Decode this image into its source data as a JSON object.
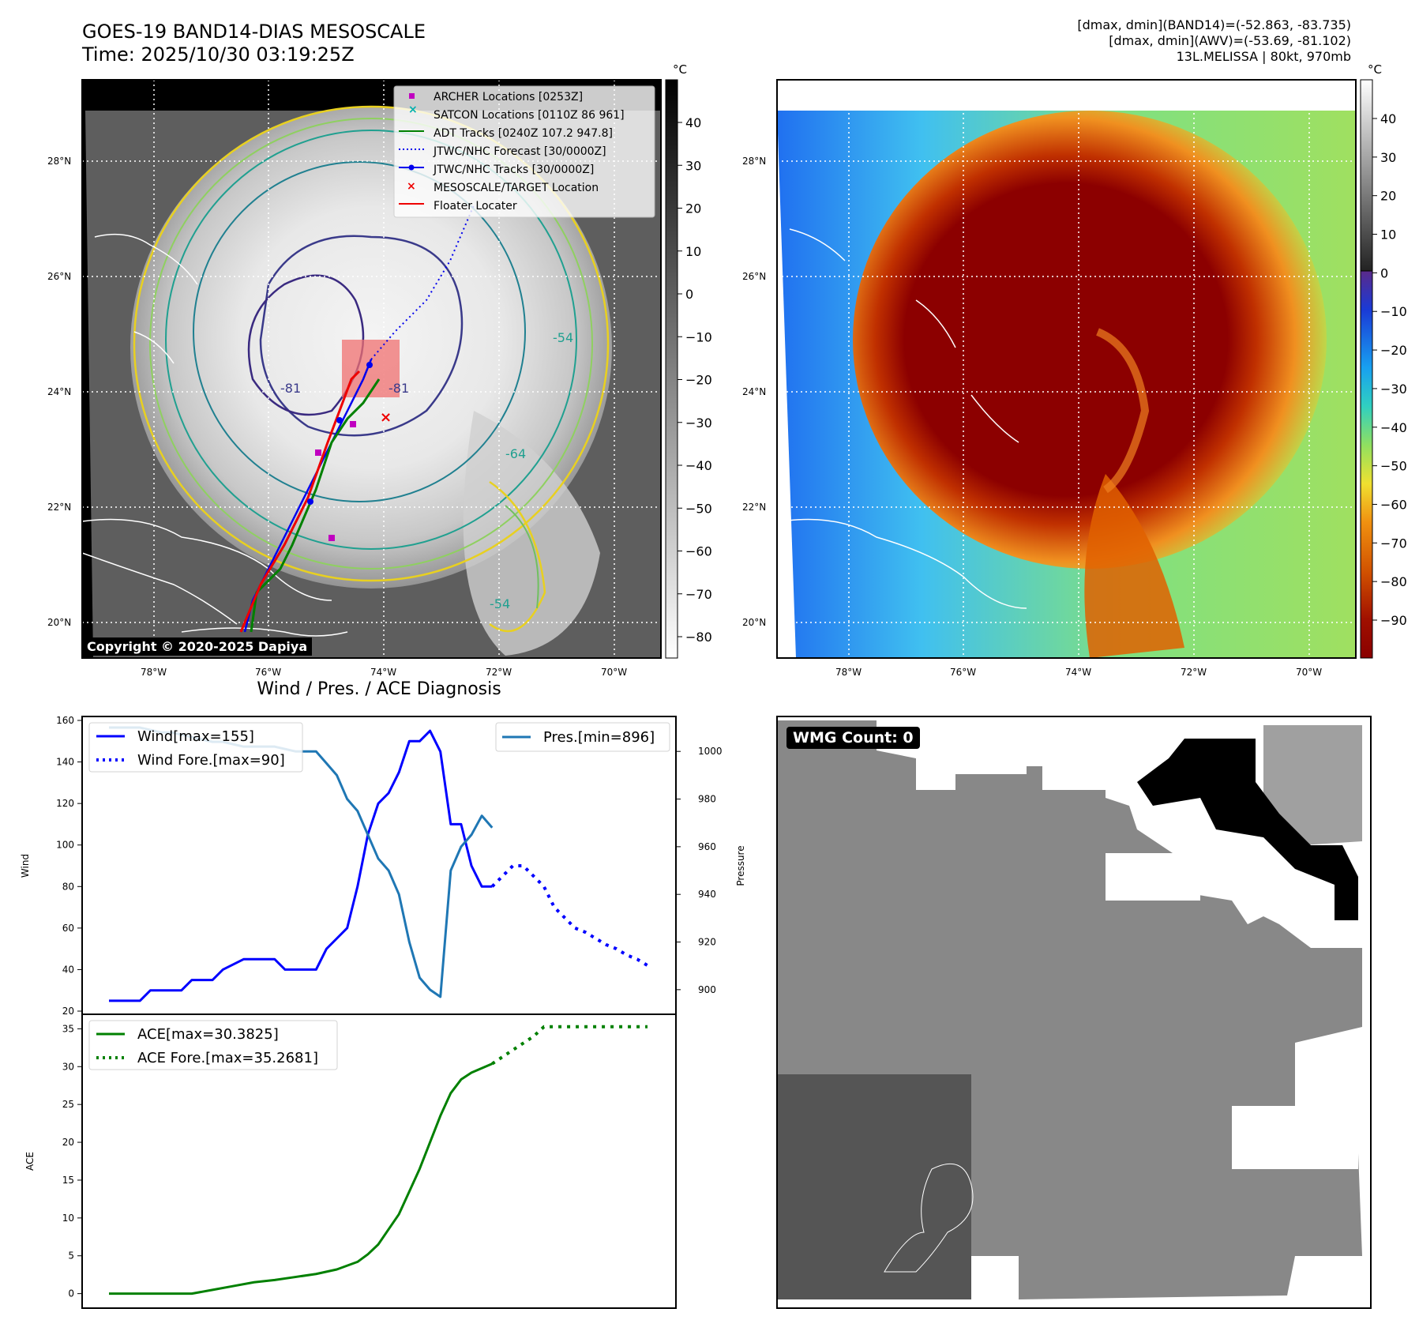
{
  "header": {
    "title_line1": "GOES-19 BAND14-DIAS MESOSCALE",
    "title_line2": "Time: 2025/10/30 03:19:25Z",
    "right_line1": "[dmax, dmin](BAND14)=(-52.863, -83.735)",
    "right_line2": "[dmax, dmin](AWV)=(-53.69, -81.102)",
    "right_line3": "13L.MELISSA | 80kt, 970mb"
  },
  "map": {
    "lat_labels": [
      "28°N",
      "26°N",
      "24°N",
      "22°N",
      "20°N"
    ],
    "lon_labels": [
      "78°W",
      "76°W",
      "74°W",
      "72°W",
      "70°W"
    ],
    "copyright": "Copyright © 2020-2025 Dapiya",
    "contour_labels": [
      "-81",
      "-54",
      "-64",
      "-81",
      "-54"
    ]
  },
  "colorbar_left": {
    "unit": "°C",
    "ticks": [
      "40",
      "30",
      "20",
      "10",
      "0",
      "−10",
      "−20",
      "−30",
      "−40",
      "−50",
      "−60",
      "−70",
      "−80"
    ]
  },
  "colorbar_right": {
    "unit": "°C",
    "ticks": [
      "40",
      "30",
      "20",
      "10",
      "0",
      "−10",
      "−20",
      "−30",
      "−40",
      "−50",
      "−60",
      "−70",
      "−80",
      "−90"
    ]
  },
  "legend": {
    "items": [
      {
        "label": "ARCHER Locations [0253Z]",
        "color": "#c000c0",
        "marker": "square-icon"
      },
      {
        "label": "SATCON Locations [0110Z 86 961]",
        "color": "#00b0b0",
        "marker": "x-icon"
      },
      {
        "label": "ADT Tracks [0240Z 107.2 947.8]",
        "color": "#008000",
        "marker": "line-icon"
      },
      {
        "label": "JTWC/NHC Forecast [30/0000Z]",
        "color": "#0000ee",
        "marker": "dotted-line-icon"
      },
      {
        "label": "JTWC/NHC Tracks [30/0000Z]",
        "color": "#0000ee",
        "marker": "line-dot-icon"
      },
      {
        "label": "MESOSCALE/TARGET Location",
        "color": "#ee0000",
        "marker": "x-icon"
      },
      {
        "label": "Floater Locater",
        "color": "#ee0000",
        "marker": "line-icon"
      }
    ]
  },
  "diagnosis": {
    "title": "Wind / Pres. / ACE Diagnosis",
    "wind_ylabel": "Wind",
    "pres_ylabel": "Pressure",
    "ace_ylabel": "ACE",
    "legend_wind": "Wind[max=155]",
    "legend_wind_fore": "Wind Fore.[max=90]",
    "legend_pres": "Pres.[min=896]",
    "legend_ace": "ACE[max=30.3825]",
    "legend_ace_fore": "ACE Fore.[max=35.2681]"
  },
  "wmg": {
    "badge": "WMG Count: 0"
  },
  "chart_data": [
    {
      "type": "line",
      "name": "wind",
      "ylim": [
        20,
        160
      ],
      "yticks": [
        20,
        40,
        60,
        80,
        100,
        120,
        140,
        160
      ],
      "series": [
        {
          "name": "Wind[max=155]",
          "color": "#0000ff",
          "style": "solid",
          "x": [
            0,
            3,
            4,
            7,
            8,
            10,
            11,
            13,
            14,
            16,
            17,
            19,
            20,
            21,
            22,
            23,
            24,
            25,
            26,
            27,
            28,
            29,
            30,
            31,
            32,
            33,
            34,
            35,
            35.5,
            36,
            36.5,
            37
          ],
          "values": [
            25,
            25,
            30,
            30,
            35,
            35,
            40,
            45,
            45,
            45,
            40,
            40,
            40,
            50,
            55,
            60,
            80,
            105,
            120,
            125,
            135,
            150,
            150,
            155,
            145,
            110,
            110,
            90,
            85,
            80,
            80,
            80
          ]
        },
        {
          "name": "Wind Fore.[max=90]",
          "color": "#0000ff",
          "style": "dotted",
          "x": [
            37,
            38,
            39,
            40,
            41,
            42,
            43,
            44,
            45,
            46,
            47,
            48,
            49,
            50,
            51,
            52
          ],
          "values": [
            80,
            85,
            90,
            90,
            85,
            80,
            70,
            65,
            60,
            58,
            55,
            52,
            50,
            47,
            45,
            42
          ]
        }
      ]
    },
    {
      "type": "line",
      "name": "pressure",
      "ylim": [
        891,
        1013
      ],
      "yticks": [
        900,
        920,
        940,
        960,
        980,
        1000
      ],
      "series": [
        {
          "name": "Pres.[min=896]",
          "color": "#1f77b4",
          "style": "solid",
          "x": [
            0,
            2,
            3,
            4,
            5,
            6,
            7,
            8,
            9,
            10,
            11,
            12,
            13,
            14,
            15,
            16,
            17,
            18,
            19,
            20,
            21,
            22,
            23,
            24,
            25,
            26,
            27,
            28,
            29,
            30,
            31,
            32,
            33,
            34,
            35,
            36,
            37
          ],
          "values": [
            1010,
            1010,
            1010,
            1009,
            1008,
            1008,
            1007,
            1006,
            1005,
            1004,
            1004,
            1003,
            1002,
            1002,
            1002,
            1002,
            1001,
            1000,
            1000,
            1000,
            995,
            990,
            980,
            975,
            965,
            955,
            950,
            940,
            920,
            905,
            900,
            897,
            950,
            960,
            965,
            973,
            968
          ]
        }
      ]
    },
    {
      "type": "line",
      "name": "ace",
      "ylim": [
        -1.5,
        36.5
      ],
      "yticks": [
        0,
        5,
        10,
        15,
        20,
        25,
        30,
        35
      ],
      "series": [
        {
          "name": "ACE[max=30.3825]",
          "color": "#008000",
          "style": "solid",
          "x": [
            0,
            8,
            10,
            12,
            14,
            16,
            18,
            20,
            22,
            24,
            25,
            26,
            27,
            28,
            29,
            30,
            31,
            32,
            33,
            34,
            35,
            37
          ],
          "values": [
            0,
            0,
            0.5,
            1.0,
            1.5,
            1.8,
            2.2,
            2.6,
            3.2,
            4.2,
            5.2,
            6.5,
            8.5,
            10.5,
            13.5,
            16.5,
            20,
            23.5,
            26.5,
            28.3,
            29.2,
            30.38
          ]
        },
        {
          "name": "ACE Fore.[max=35.2681]",
          "color": "#008000",
          "style": "dotted",
          "x": [
            37,
            39,
            41,
            42,
            44,
            46,
            48,
            50,
            52
          ],
          "values": [
            30.38,
            32.2,
            34,
            35.27,
            35.27,
            35.27,
            35.27,
            35.27,
            35.27
          ]
        }
      ]
    }
  ]
}
